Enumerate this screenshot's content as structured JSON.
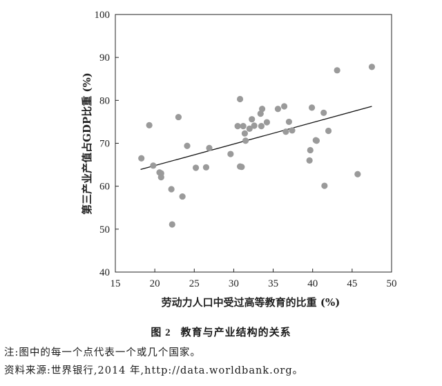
{
  "chart_data": {
    "type": "scatter",
    "xlabel": "劳动力人口中受过高等教育的比重 (%)",
    "ylabel": "第三产业产值占GDP比重 (%)",
    "xlim": [
      15,
      50
    ],
    "ylim": [
      40,
      100
    ],
    "xticks": [
      15,
      20,
      25,
      30,
      35,
      40,
      45,
      50
    ],
    "yticks": [
      40,
      50,
      60,
      70,
      80,
      90,
      100
    ],
    "grid": false,
    "trendline": {
      "x": [
        18.2,
        47.5
      ],
      "y": [
        63.9,
        78.6
      ]
    },
    "points": [
      {
        "x": 18.3,
        "y": 66.5
      },
      {
        "x": 19.3,
        "y": 74.2
      },
      {
        "x": 19.8,
        "y": 64.8
      },
      {
        "x": 20.6,
        "y": 63.2
      },
      {
        "x": 20.8,
        "y": 63.0
      },
      {
        "x": 20.8,
        "y": 62.1
      },
      {
        "x": 22.1,
        "y": 59.3
      },
      {
        "x": 22.2,
        "y": 51.1
      },
      {
        "x": 23.0,
        "y": 76.1
      },
      {
        "x": 23.5,
        "y": 57.6
      },
      {
        "x": 24.1,
        "y": 69.4
      },
      {
        "x": 25.2,
        "y": 64.3
      },
      {
        "x": 26.5,
        "y": 64.4
      },
      {
        "x": 26.9,
        "y": 68.9
      },
      {
        "x": 29.6,
        "y": 67.5
      },
      {
        "x": 30.5,
        "y": 74.0
      },
      {
        "x": 30.8,
        "y": 80.3
      },
      {
        "x": 30.8,
        "y": 64.6
      },
      {
        "x": 31.0,
        "y": 64.5
      },
      {
        "x": 31.2,
        "y": 74.0
      },
      {
        "x": 31.4,
        "y": 72.3
      },
      {
        "x": 31.5,
        "y": 70.6
      },
      {
        "x": 32.0,
        "y": 73.4
      },
      {
        "x": 32.3,
        "y": 75.6
      },
      {
        "x": 32.6,
        "y": 74.1
      },
      {
        "x": 33.4,
        "y": 76.9
      },
      {
        "x": 33.5,
        "y": 74.0
      },
      {
        "x": 33.6,
        "y": 78.0
      },
      {
        "x": 34.2,
        "y": 74.9
      },
      {
        "x": 35.6,
        "y": 78.0
      },
      {
        "x": 36.4,
        "y": 78.6
      },
      {
        "x": 36.6,
        "y": 72.7
      },
      {
        "x": 37.0,
        "y": 75.0
      },
      {
        "x": 37.4,
        "y": 73.0
      },
      {
        "x": 39.6,
        "y": 66.0
      },
      {
        "x": 39.7,
        "y": 68.4
      },
      {
        "x": 39.9,
        "y": 78.3
      },
      {
        "x": 40.4,
        "y": 70.7
      },
      {
        "x": 40.5,
        "y": 70.6
      },
      {
        "x": 41.4,
        "y": 77.1
      },
      {
        "x": 41.5,
        "y": 60.1
      },
      {
        "x": 42.0,
        "y": 72.9
      },
      {
        "x": 43.1,
        "y": 87.0
      },
      {
        "x": 45.7,
        "y": 62.8
      },
      {
        "x": 47.5,
        "y": 87.8
      }
    ]
  },
  "caption": {
    "number": "图 2",
    "text": "教育与产业结构的关系"
  },
  "notes": [
    "注:图中的每一个点代表一个或几个国家。",
    "资料来源:世界银行,2014 年,http://data.worldbank.org。"
  ]
}
